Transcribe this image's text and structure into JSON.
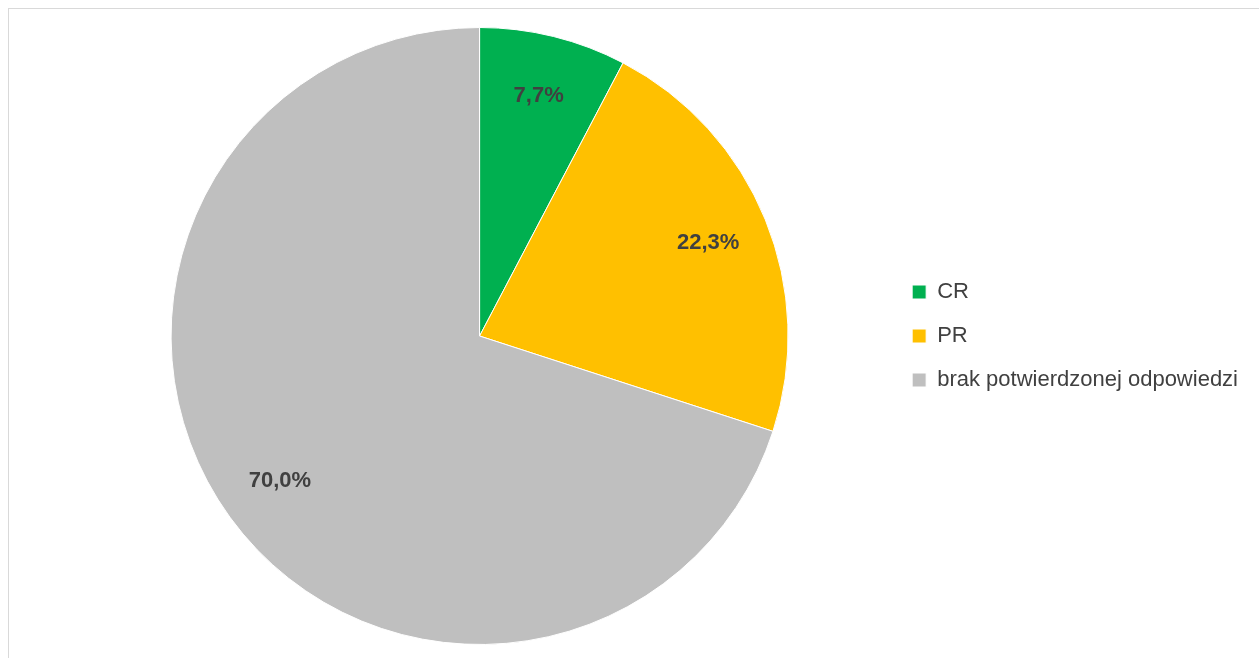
{
  "chart_data": {
    "type": "pie",
    "categories": [
      "CR",
      "PR",
      "brak potwierdzonej odpowiedzi"
    ],
    "values": [
      7.7,
      22.3,
      70.0
    ],
    "colors": [
      "#00b050",
      "#ffc000",
      "#bfbfbf"
    ],
    "value_labels": [
      "7,7%",
      "22,3%",
      "70,0%"
    ],
    "legend": "right"
  }
}
